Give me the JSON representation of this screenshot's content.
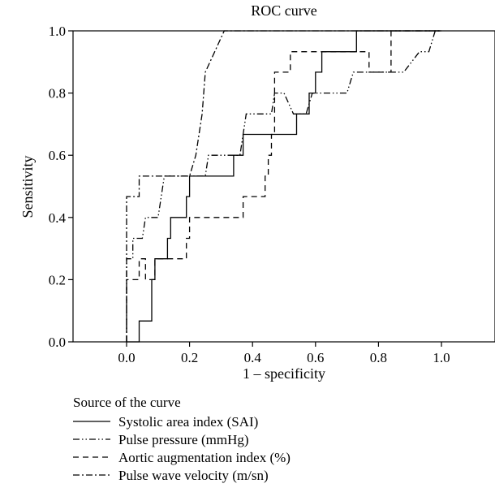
{
  "chart_data": {
    "type": "line",
    "title": "ROC curve",
    "xlabel": "1 – specificity",
    "ylabel": "Sensitivity",
    "xlim": [
      -0.17,
      1.17
    ],
    "ylim": [
      0,
      1
    ],
    "x_ticks": [
      "0.0",
      "0.2",
      "0.4",
      "0.6",
      "0.8",
      "1.0"
    ],
    "y_ticks": [
      "0.0",
      "0.2",
      "0.4",
      "0.6",
      "0.8",
      "1.0"
    ],
    "grid": false,
    "legend_title": "Source of the curve",
    "legend_position": "bottom",
    "series": [
      {
        "name": "Systolic area index (SAI)",
        "line_style": "solid",
        "points": [
          [
            0,
            0
          ],
          [
            0.04,
            0
          ],
          [
            0.04,
            0.067
          ],
          [
            0.08,
            0.067
          ],
          [
            0.08,
            0.2
          ],
          [
            0.09,
            0.2
          ],
          [
            0.09,
            0.267
          ],
          [
            0.13,
            0.267
          ],
          [
            0.13,
            0.333
          ],
          [
            0.14,
            0.333
          ],
          [
            0.14,
            0.4
          ],
          [
            0.19,
            0.4
          ],
          [
            0.19,
            0.467
          ],
          [
            0.2,
            0.467
          ],
          [
            0.2,
            0.533
          ],
          [
            0.34,
            0.533
          ],
          [
            0.34,
            0.6
          ],
          [
            0.37,
            0.6
          ],
          [
            0.37,
            0.667
          ],
          [
            0.54,
            0.667
          ],
          [
            0.54,
            0.733
          ],
          [
            0.58,
            0.733
          ],
          [
            0.58,
            0.8
          ],
          [
            0.6,
            0.8
          ],
          [
            0.6,
            0.867
          ],
          [
            0.62,
            0.867
          ],
          [
            0.62,
            0.933
          ],
          [
            0.73,
            0.933
          ],
          [
            0.73,
            1.0
          ],
          [
            1.0,
            1.0
          ]
        ]
      },
      {
        "name": "Pulse pressure (mmHg)",
        "line_style": "dash-dot-dot",
        "points": [
          [
            0,
            0
          ],
          [
            0,
            0.267
          ],
          [
            0.02,
            0.267
          ],
          [
            0.02,
            0.333
          ],
          [
            0.05,
            0.333
          ],
          [
            0.06,
            0.4
          ],
          [
            0.1,
            0.4
          ],
          [
            0.12,
            0.533
          ],
          [
            0.25,
            0.533
          ],
          [
            0.26,
            0.6
          ],
          [
            0.36,
            0.6
          ],
          [
            0.38,
            0.733
          ],
          [
            0.46,
            0.733
          ],
          [
            0.47,
            0.8
          ],
          [
            0.5,
            0.8
          ],
          [
            0.53,
            0.733
          ],
          [
            0.57,
            0.733
          ],
          [
            0.59,
            0.8
          ],
          [
            0.7,
            0.8
          ],
          [
            0.72,
            0.867
          ],
          [
            0.88,
            0.867
          ],
          [
            0.93,
            0.933
          ],
          [
            0.96,
            0.933
          ],
          [
            0.98,
            1.0
          ],
          [
            1.0,
            1.0
          ]
        ]
      },
      {
        "name": "Aortic augmentation index (%)",
        "line_style": "dashed",
        "points": [
          [
            0,
            0
          ],
          [
            0,
            0.2
          ],
          [
            0.04,
            0.2
          ],
          [
            0.04,
            0.267
          ],
          [
            0.06,
            0.267
          ],
          [
            0.06,
            0.2
          ],
          [
            0.09,
            0.2
          ],
          [
            0.09,
            0.267
          ],
          [
            0.19,
            0.267
          ],
          [
            0.19,
            0.333
          ],
          [
            0.2,
            0.333
          ],
          [
            0.2,
            0.4
          ],
          [
            0.37,
            0.4
          ],
          [
            0.37,
            0.467
          ],
          [
            0.44,
            0.467
          ],
          [
            0.44,
            0.533
          ],
          [
            0.45,
            0.533
          ],
          [
            0.45,
            0.6
          ],
          [
            0.46,
            0.6
          ],
          [
            0.46,
            0.667
          ],
          [
            0.47,
            0.667
          ],
          [
            0.47,
            0.867
          ],
          [
            0.52,
            0.867
          ],
          [
            0.52,
            0.933
          ],
          [
            0.77,
            0.933
          ],
          [
            0.77,
            0.867
          ],
          [
            0.84,
            0.867
          ],
          [
            0.84,
            1.0
          ],
          [
            1.0,
            1.0
          ]
        ]
      },
      {
        "name": "Pulse wave velocity (m/sn)",
        "line_style": "dash-dot",
        "points": [
          [
            0,
            0
          ],
          [
            0,
            0.467
          ],
          [
            0.04,
            0.467
          ],
          [
            0.04,
            0.533
          ],
          [
            0.2,
            0.533
          ],
          [
            0.22,
            0.6
          ],
          [
            0.24,
            0.733
          ],
          [
            0.25,
            0.867
          ],
          [
            0.28,
            0.933
          ],
          [
            0.31,
            1.0
          ],
          [
            1.0,
            1.0
          ]
        ]
      }
    ]
  }
}
